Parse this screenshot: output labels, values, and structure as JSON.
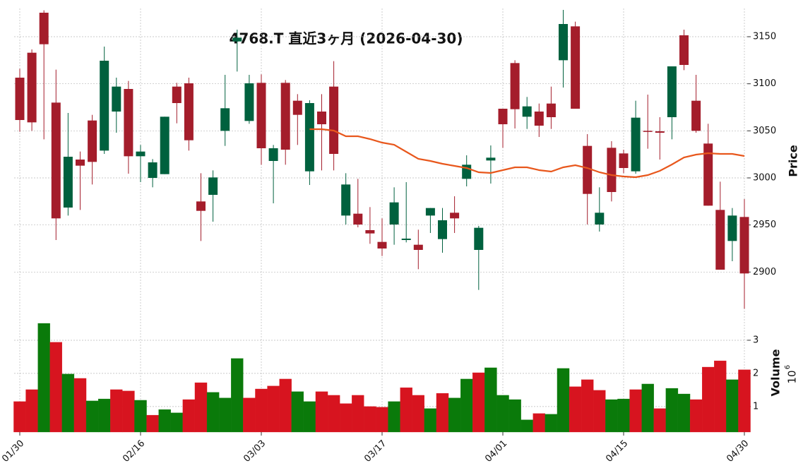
{
  "chart_data": {
    "type": "candlestick",
    "title": "4768.T 直近3ヶ月 (2026-04-30)",
    "categories": [
      "01/30",
      null,
      null,
      null,
      null,
      null,
      null,
      null,
      null,
      null,
      "02/16",
      null,
      null,
      null,
      null,
      null,
      null,
      null,
      null,
      null,
      "03/03",
      null,
      null,
      null,
      null,
      null,
      null,
      null,
      null,
      null,
      "03/17",
      null,
      null,
      null,
      null,
      null,
      null,
      null,
      null,
      null,
      "04/01",
      null,
      null,
      null,
      null,
      null,
      null,
      null,
      null,
      null,
      "04/15",
      null,
      null,
      null,
      null,
      null,
      null,
      null,
      null,
      null,
      "04/30"
    ],
    "open": [
      3106.5,
      3133,
      3175.5,
      3080,
      2968.5,
      3019.5,
      3061,
      3029,
      3070.5,
      3094.5,
      3023,
      3000,
      3004,
      3097,
      3100.5,
      2975,
      2982,
      3050,
      3145,
      3060.5,
      3101,
      3018,
      3101,
      3082,
      3007,
      3070.5,
      3097,
      2960,
      2962,
      2944.5,
      2932,
      2950.5,
      2934,
      2929,
      2960,
      2935,
      2963,
      2999,
      2923.5,
      3018.5,
      3073.5,
      3122,
      3065,
      3070.5,
      3079,
      3125,
      3161,
      3034,
      2950.5,
      3032,
      3026,
      3007,
      3050,
      3049.5,
      3064.5,
      3151.5,
      3082,
      3036.5,
      2966,
      2933,
      2958.5
    ],
    "high": [
      3116,
      3136.5,
      3178,
      3115,
      3069,
      3028,
      3067,
      3139.5,
      3106.5,
      3103,
      3035,
      3020,
      3065,
      3101,
      3106.5,
      3005,
      3008,
      3109.5,
      3157.5,
      3109.5,
      3110,
      3035,
      3104,
      3089,
      3082.5,
      3089,
      3124,
      3005,
      2999,
      2969,
      2957,
      2990,
      2995.5,
      2945,
      2968,
      2968,
      2980.5,
      3024,
      2949,
      3034.5,
      3073.5,
      3125,
      3086,
      3079,
      3097,
      3178.5,
      3166,
      3046.5,
      2990,
      3039,
      3030,
      3082,
      3088.5,
      3064.5,
      3118.5,
      3157.5,
      3109.5,
      3057.5,
      2996,
      2968,
      2977.5
    ],
    "low": [
      3049,
      3050,
      3041,
      2934,
      2960,
      2966,
      2993,
      3025.5,
      3048,
      3004.5,
      2995.5,
      2990,
      3004,
      3058,
      3029,
      2933,
      2953.5,
      3034,
      3113,
      3057.5,
      3014,
      2973,
      3014,
      3035,
      2992.5,
      3008,
      3008,
      2950.5,
      2947.5,
      2930,
      2917,
      2929,
      2931.5,
      2903,
      2941.5,
      2920.5,
      2941.5,
      2991,
      2881,
      2994,
      3032,
      3052.5,
      3052,
      3043.5,
      3052,
      3096,
      3073.5,
      2950.5,
      2943,
      2975,
      3005,
      3004.5,
      3031,
      3019.5,
      3041,
      3114.5,
      3048,
      2970.5,
      2902.5,
      2911.5,
      2861
    ],
    "close": [
      3061.5,
      3059,
      3142,
      2957,
      3022.5,
      3013,
      3017,
      3124.5,
      3097,
      3023,
      3028,
      3016.5,
      3065,
      3079.5,
      3040,
      2965,
      3000.5,
      3074,
      3149,
      3100.5,
      3031.5,
      3031.5,
      3030,
      3067,
      3079.5,
      3057,
      3025.5,
      2993,
      2950.5,
      2941,
      2925,
      2974,
      2935.5,
      2923.5,
      2968,
      2955,
      2957,
      3014,
      2947,
      3021.5,
      3057,
      3073,
      3076,
      3055.5,
      3064.5,
      3163.5,
      3073.5,
      2983,
      2963,
      2985,
      3010.5,
      3064,
      3049,
      3048,
      3118.5,
      3120,
      3050,
      2970.5,
      2902.5,
      2960,
      2898.5
    ],
    "up_color": "#00613e",
    "down_color": "#a41d2b",
    "moving_average": {
      "color": "#e8571c",
      "values": [
        null,
        null,
        null,
        null,
        null,
        null,
        null,
        null,
        null,
        null,
        null,
        null,
        null,
        null,
        null,
        null,
        null,
        null,
        null,
        null,
        null,
        null,
        null,
        null,
        3051.75,
        3051.75,
        3050.25,
        3044.25,
        3044.25,
        3041.25,
        3037.5,
        3035.25,
        3027.75,
        3020.25,
        3018,
        3015,
        3012.75,
        3010.5,
        3006,
        3005.25,
        3008.25,
        3011.25,
        3011.25,
        3008.25,
        3006.75,
        3011.25,
        3013.5,
        3010.5,
        3006,
        3003,
        3001.5,
        3000.75,
        3003,
        3007.5,
        3014.25,
        3021.75,
        3024.75,
        3026.25,
        3025.5,
        3025.5,
        3023.25
      ]
    },
    "ylabel": "Price",
    "ylim": [
      2859,
      3180
    ],
    "yticks": [
      2900,
      2950,
      3000,
      3050,
      3100,
      3150
    ],
    "grid": true,
    "volume": {
      "ylabel": "Volume",
      "exponent_base": "10",
      "exponent": "6",
      "ylim": [
        0.23,
        3.83
      ],
      "yticks": [
        1,
        2,
        3
      ],
      "values": [
        1.15,
        1.51,
        3.51,
        2.94,
        1.98,
        1.85,
        1.17,
        1.23,
        1.51,
        1.47,
        1.19,
        0.74,
        0.91,
        0.81,
        1.21,
        1.72,
        1.43,
        1.26,
        2.45,
        1.26,
        1.53,
        1.62,
        1.83,
        1.45,
        1.15,
        1.45,
        1.34,
        1.09,
        1.34,
        1.0,
        0.98,
        1.15,
        1.57,
        1.34,
        0.94,
        1.4,
        1.26,
        1.83,
        2.02,
        2.17,
        1.34,
        1.21,
        0.6,
        0.79,
        0.77,
        2.15,
        1.6,
        1.81,
        1.49,
        1.21,
        1.23,
        1.51,
        1.68,
        0.94,
        1.55,
        1.38,
        1.21,
        2.19,
        2.38,
        1.81,
        2.11
      ],
      "colors": [
        "#d7141f",
        "#d7141f",
        "#0a7a0a",
        "#d7141f",
        "#0a7a0a",
        "#d7141f",
        "#0a7a0a",
        "#0a7a0a",
        "#d7141f",
        "#d7141f",
        "#0a7a0a",
        "#d7141f",
        "#0a7a0a",
        "#0a7a0a",
        "#d7141f",
        "#d7141f",
        "#0a7a0a",
        "#0a7a0a",
        "#0a7a0a",
        "#d7141f",
        "#d7141f",
        "#d7141f",
        "#d7141f",
        "#0a7a0a",
        "#0a7a0a",
        "#d7141f",
        "#d7141f",
        "#d7141f",
        "#d7141f",
        "#d7141f",
        "#d7141f",
        "#0a7a0a",
        "#d7141f",
        "#d7141f",
        "#0a7a0a",
        "#d7141f",
        "#0a7a0a",
        "#0a7a0a",
        "#d7141f",
        "#0a7a0a",
        "#0a7a0a",
        "#0a7a0a",
        "#0a7a0a",
        "#d7141f",
        "#0a7a0a",
        "#0a7a0a",
        "#d7141f",
        "#d7141f",
        "#d7141f",
        "#0a7a0a",
        "#0a7a0a",
        "#d7141f",
        "#0a7a0a",
        "#d7141f",
        "#0a7a0a",
        "#0a7a0a",
        "#d7141f",
        "#d7141f",
        "#d7141f",
        "#0a7a0a",
        "#d7141f"
      ]
    }
  }
}
